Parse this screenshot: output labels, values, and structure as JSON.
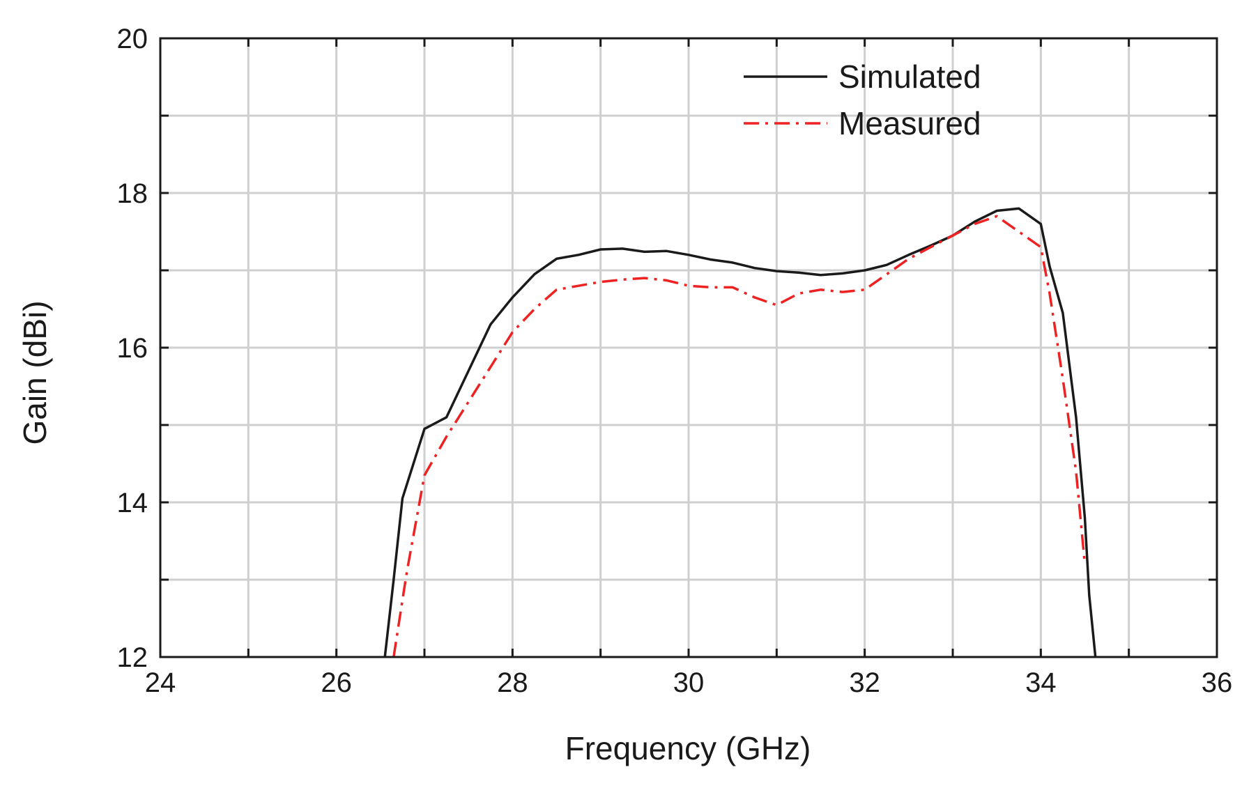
{
  "chart_data": {
    "type": "line",
    "title": "",
    "xlabel": "Frequency (GHz)",
    "ylabel": "Gain (dBi)",
    "xlim": [
      24,
      36
    ],
    "ylim": [
      12,
      20
    ],
    "xticks": [
      24,
      26,
      28,
      30,
      32,
      34,
      36
    ],
    "yticks": [
      12,
      14,
      16,
      18,
      20
    ],
    "xgrid_step": 1,
    "ygrid_step": 1,
    "grid": true,
    "legend": "top-right",
    "series": [
      {
        "name": "Simulated",
        "color": "#1a1a1a",
        "style": "solid",
        "x": [
          26.55,
          26.65,
          26.75,
          27.0,
          27.25,
          27.5,
          27.75,
          28.0,
          28.25,
          28.5,
          28.75,
          29.0,
          29.25,
          29.5,
          29.75,
          30.0,
          30.25,
          30.5,
          30.75,
          31.0,
          31.25,
          31.5,
          31.75,
          32.0,
          32.25,
          32.5,
          32.75,
          33.0,
          33.25,
          33.5,
          33.75,
          34.0,
          34.1,
          34.25,
          34.4,
          34.5,
          34.55,
          34.62
        ],
        "y": [
          12.0,
          13.0,
          14.05,
          14.95,
          15.1,
          15.7,
          16.3,
          16.65,
          16.95,
          17.15,
          17.2,
          17.27,
          17.28,
          17.24,
          17.25,
          17.2,
          17.14,
          17.1,
          17.03,
          16.99,
          16.97,
          16.94,
          16.96,
          17.0,
          17.07,
          17.2,
          17.32,
          17.45,
          17.63,
          17.77,
          17.8,
          17.6,
          17.05,
          16.45,
          15.1,
          13.8,
          12.8,
          12.0
        ]
      },
      {
        "name": "Measured",
        "color": "#ee2222",
        "style": "dashdot",
        "x": [
          26.65,
          26.8,
          27.0,
          27.25,
          27.5,
          27.75,
          28.0,
          28.25,
          28.5,
          28.75,
          29.0,
          29.25,
          29.5,
          29.75,
          30.0,
          30.25,
          30.5,
          30.75,
          31.0,
          31.25,
          31.5,
          31.75,
          32.0,
          32.25,
          32.5,
          32.75,
          33.0,
          33.25,
          33.5,
          33.75,
          34.0,
          34.1,
          34.25,
          34.4,
          34.5
        ],
        "y": [
          12.0,
          13.1,
          14.35,
          14.85,
          15.3,
          15.75,
          16.2,
          16.5,
          16.75,
          16.8,
          16.85,
          16.88,
          16.9,
          16.87,
          16.8,
          16.78,
          16.78,
          16.65,
          16.55,
          16.7,
          16.75,
          16.72,
          16.75,
          16.95,
          17.15,
          17.3,
          17.45,
          17.6,
          17.7,
          17.5,
          17.3,
          16.7,
          15.6,
          14.4,
          13.2
        ]
      }
    ]
  }
}
